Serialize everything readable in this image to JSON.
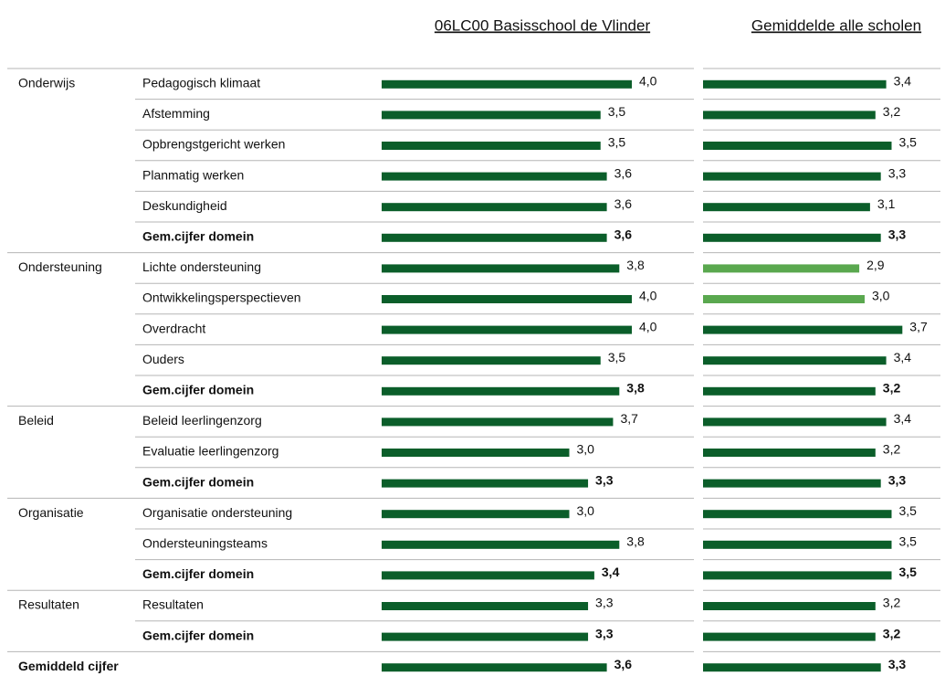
{
  "chart_data": {
    "type": "bar",
    "rows": [
      {
        "group": "Onderwijs",
        "label": "Pedagogisch klimaat"
      },
      {
        "label": "Afstemming"
      },
      {
        "label": "Opbrengstgericht werken"
      },
      {
        "label": "Planmatig werken"
      },
      {
        "label": "Deskundigheid"
      },
      {
        "label": "Gem.cijfer domein",
        "bold": true
      },
      {
        "group": "Ondersteuning",
        "label": "Lichte ondersteuning"
      },
      {
        "label": "Ontwikkelingsperspectieven"
      },
      {
        "label": "Overdracht"
      },
      {
        "label": "Ouders"
      },
      {
        "label": "Gem.cijfer domein",
        "bold": true
      },
      {
        "group": "Beleid",
        "label": "Beleid leerlingenzorg"
      },
      {
        "label": "Evaluatie leerlingenzorg"
      },
      {
        "label": "Gem.cijfer domein",
        "bold": true
      },
      {
        "group": "Organisatie",
        "label": "Organisatie ondersteuning"
      },
      {
        "label": "Ondersteuningsteams"
      },
      {
        "label": "Gem.cijfer domein",
        "bold": true
      },
      {
        "group": "Resultaten",
        "label": "Resultaten"
      },
      {
        "label": "Gem.cijfer domein",
        "bold": true
      },
      {
        "group": "Gemiddeld cijfer",
        "bold": true
      }
    ],
    "series": [
      {
        "name": "06LC00 Basisschool de Vlinder",
        "color": "#0b5e2a",
        "values": [
          4.0,
          3.5,
          3.5,
          3.6,
          3.6,
          3.6,
          3.8,
          4.0,
          4.0,
          3.5,
          3.8,
          3.7,
          3.0,
          3.3,
          3.0,
          3.8,
          3.4,
          3.3,
          3.3,
          3.6
        ],
        "value_labels": [
          "4,0",
          "3,5",
          "3,5",
          "3,6",
          "3,6",
          "3,6",
          "3,8",
          "4,0",
          "4,0",
          "3,5",
          "3,8",
          "3,7",
          "3,0",
          "3,3",
          "3,0",
          "3,8",
          "3,4",
          "3,3",
          "3,3",
          "3,6"
        ]
      },
      {
        "name": "Gemiddelde alle scholen",
        "color": "#0b5e2a",
        "colors": [
          "#0b5e2a",
          "#0b5e2a",
          "#0b5e2a",
          "#0b5e2a",
          "#0b5e2a",
          "#0b5e2a",
          "#5aa84f",
          "#5aa84f",
          "#0b5e2a",
          "#0b5e2a",
          "#0b5e2a",
          "#0b5e2a",
          "#0b5e2a",
          "#0b5e2a",
          "#0b5e2a",
          "#0b5e2a",
          "#0b5e2a",
          "#0b5e2a",
          "#0b5e2a",
          "#0b5e2a"
        ],
        "values": [
          3.4,
          3.2,
          3.5,
          3.3,
          3.1,
          3.3,
          2.9,
          3.0,
          3.7,
          3.4,
          3.2,
          3.4,
          3.2,
          3.3,
          3.5,
          3.5,
          3.5,
          3.2,
          3.2,
          3.3
        ],
        "value_labels": [
          "3,4",
          "3,2",
          "3,5",
          "3,3",
          "3,1",
          "3,3",
          "2,9",
          "3,0",
          "3,7",
          "3,4",
          "3,2",
          "3,4",
          "3,2",
          "3,3",
          "3,5",
          "3,5",
          "3,5",
          "3,2",
          "3,2",
          "3,3"
        ]
      }
    ]
  }
}
